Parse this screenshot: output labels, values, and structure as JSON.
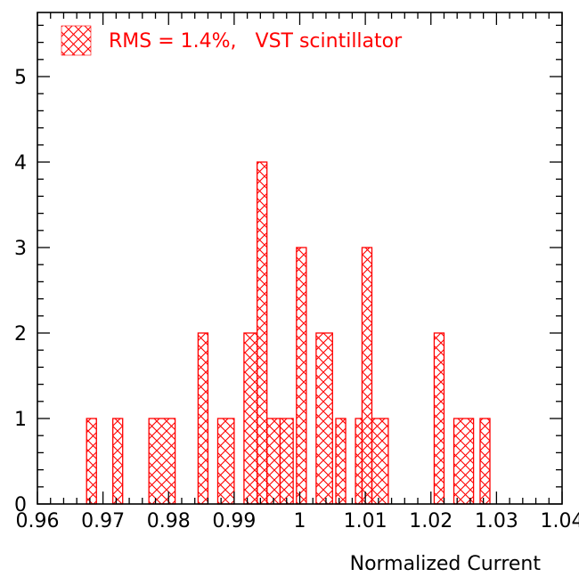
{
  "chart_data": {
    "type": "bar",
    "style": "histogram",
    "xlabel": "Normalized Current",
    "ylabel": "",
    "xlim": [
      0.96,
      1.04
    ],
    "ylim": [
      0,
      5.75
    ],
    "bin_width": 0.002,
    "x_ticks": [
      "0.96",
      "0.97",
      "0.98",
      "0.99",
      "1",
      "1.01",
      "1.02",
      "1.03",
      "1.04"
    ],
    "x_tick_values": [
      0.96,
      0.97,
      0.98,
      0.99,
      1.0,
      1.01,
      1.02,
      1.03,
      1.04
    ],
    "y_ticks": [
      "0",
      "1",
      "2",
      "3",
      "4",
      "5"
    ],
    "y_tick_values": [
      0,
      1,
      2,
      3,
      4,
      5
    ],
    "bins": [
      {
        "x0": 0.9675,
        "x1": 0.969,
        "count": 1
      },
      {
        "x0": 0.9715,
        "x1": 0.973,
        "count": 1
      },
      {
        "x0": 0.977,
        "x1": 0.981,
        "count": 1
      },
      {
        "x0": 0.9845,
        "x1": 0.986,
        "count": 2
      },
      {
        "x0": 0.9875,
        "x1": 0.99,
        "count": 1
      },
      {
        "x0": 0.9915,
        "x1": 0.9935,
        "count": 2
      },
      {
        "x0": 0.9935,
        "x1": 0.995,
        "count": 4
      },
      {
        "x0": 0.995,
        "x1": 0.997,
        "count": 1
      },
      {
        "x0": 0.997,
        "x1": 0.999,
        "count": 1
      },
      {
        "x0": 0.9995,
        "x1": 1.001,
        "count": 3
      },
      {
        "x0": 1.0025,
        "x1": 1.005,
        "count": 2
      },
      {
        "x0": 1.0055,
        "x1": 1.007,
        "count": 1
      },
      {
        "x0": 1.0085,
        "x1": 1.0095,
        "count": 1
      },
      {
        "x0": 1.0095,
        "x1": 1.011,
        "count": 3
      },
      {
        "x0": 1.011,
        "x1": 1.0135,
        "count": 1
      },
      {
        "x0": 1.0205,
        "x1": 1.022,
        "count": 2
      },
      {
        "x0": 1.0235,
        "x1": 1.0265,
        "count": 1
      },
      {
        "x0": 1.0275,
        "x1": 1.029,
        "count": 1
      }
    ],
    "legend": {
      "entries": [
        {
          "label": "RMS = 1.4%,   VST scintillator",
          "color": "#ff0000",
          "pattern": "crosshatch"
        }
      ],
      "placement": "top-left"
    },
    "colors": {
      "series": "#ff0000",
      "axis": "#000000",
      "background": "#ffffff"
    },
    "grid": false
  }
}
